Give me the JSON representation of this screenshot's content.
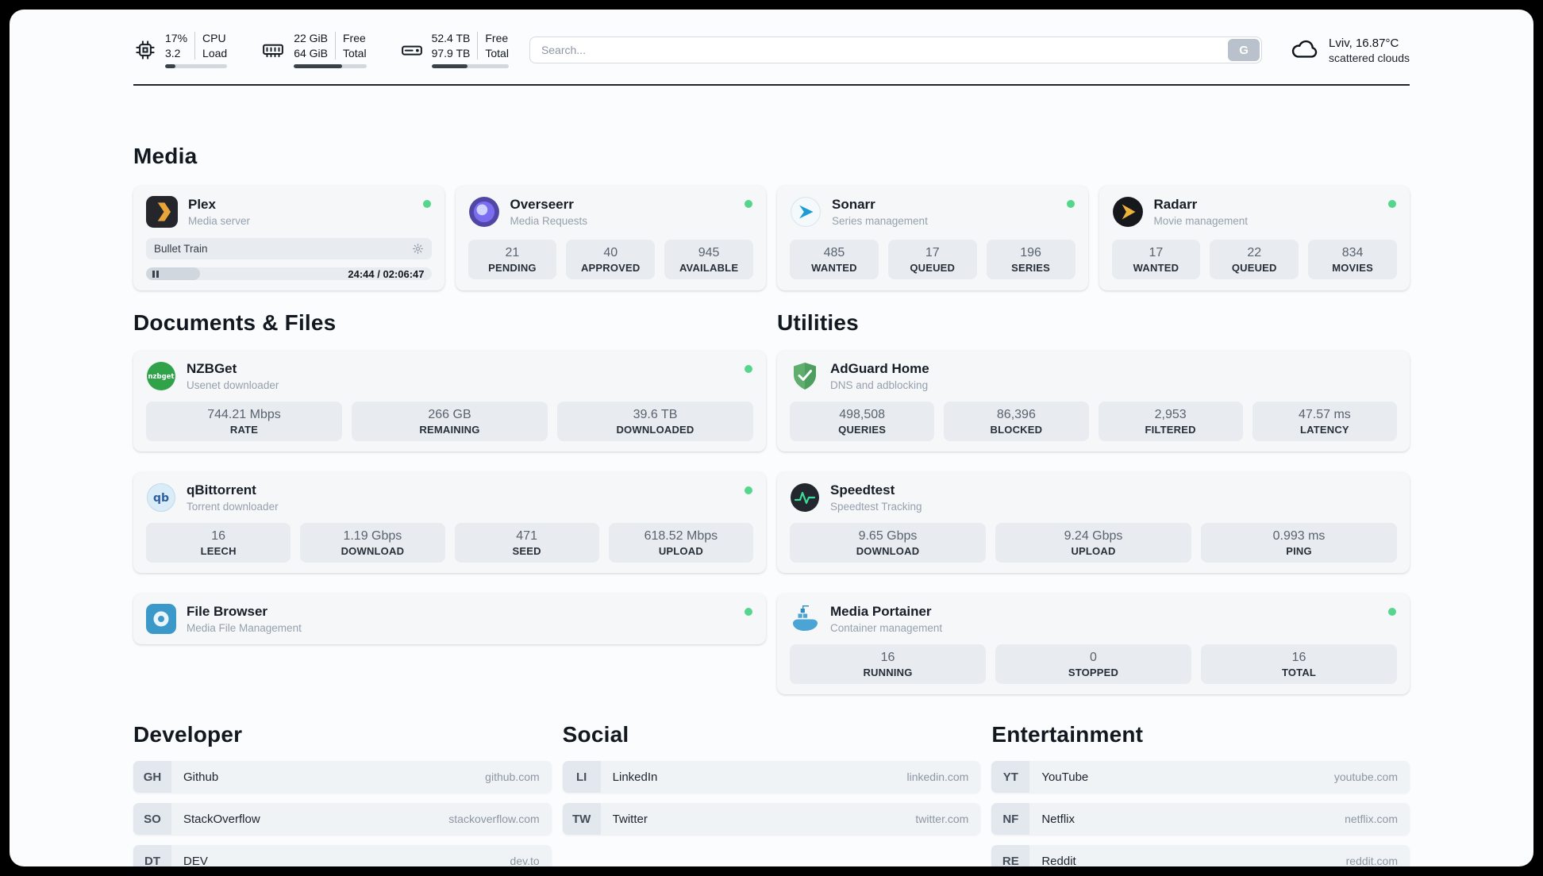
{
  "colors": {
    "status_online": "#56d68c"
  },
  "header": {
    "cpu": {
      "value1": "17%",
      "value2": "3.2",
      "label1": "CPU",
      "label2": "Load",
      "progress": 17
    },
    "ram": {
      "value1": "22 GiB",
      "value2": "64 GiB",
      "label1": "Free",
      "label2": "Total",
      "progress": 66
    },
    "disk": {
      "value1": "52.4 TB",
      "value2": "97.9 TB",
      "label1": "Free",
      "label2": "Total",
      "progress": 47
    },
    "search": {
      "placeholder": "Search...",
      "button_label": "G"
    },
    "weather": {
      "location": "Lviv, 16.87°C",
      "condition": "scattered clouds"
    }
  },
  "media": {
    "title": "Media",
    "plex": {
      "name": "Plex",
      "subtitle": "Media server",
      "now_playing": "Bullet Train",
      "time": "24:44 / 02:06:47",
      "progress": 19
    },
    "cards": [
      {
        "name": "Overseerr",
        "subtitle": "Media Requests",
        "stats": [
          {
            "value": "21",
            "label": "PENDING"
          },
          {
            "value": "40",
            "label": "APPROVED"
          },
          {
            "value": "945",
            "label": "AVAILABLE"
          }
        ]
      },
      {
        "name": "Sonarr",
        "subtitle": "Series management",
        "stats": [
          {
            "value": "485",
            "label": "WANTED"
          },
          {
            "value": "17",
            "label": "QUEUED"
          },
          {
            "value": "196",
            "label": "SERIES"
          }
        ]
      },
      {
        "name": "Radarr",
        "subtitle": "Movie management",
        "stats": [
          {
            "value": "17",
            "label": "WANTED"
          },
          {
            "value": "22",
            "label": "QUEUED"
          },
          {
            "value": "834",
            "label": "MOVIES"
          }
        ]
      }
    ]
  },
  "documents": {
    "title": "Documents & Files",
    "cards": [
      {
        "name": "NZBGet",
        "subtitle": "Usenet downloader",
        "stats": [
          {
            "value": "744.21 Mbps",
            "label": "RATE"
          },
          {
            "value": "266 GB",
            "label": "REMAINING"
          },
          {
            "value": "39.6 TB",
            "label": "DOWNLOADED"
          }
        ]
      },
      {
        "name": "qBittorrent",
        "subtitle": "Torrent downloader",
        "stats": [
          {
            "value": "16",
            "label": "LEECH"
          },
          {
            "value": "1.19 Gbps",
            "label": "DOWNLOAD"
          },
          {
            "value": "471",
            "label": "SEED"
          },
          {
            "value": "618.52 Mbps",
            "label": "UPLOAD"
          }
        ]
      },
      {
        "name": "File Browser",
        "subtitle": "Media File Management",
        "stats": []
      }
    ]
  },
  "utilities": {
    "title": "Utilities",
    "cards": [
      {
        "name": "AdGuard Home",
        "subtitle": "DNS and adblocking",
        "stats": [
          {
            "value": "498,508",
            "label": "QUERIES"
          },
          {
            "value": "86,396",
            "label": "BLOCKED"
          },
          {
            "value": "2,953",
            "label": "FILTERED"
          },
          {
            "value": "47.57 ms",
            "label": "LATENCY"
          }
        ]
      },
      {
        "name": "Speedtest",
        "subtitle": "Speedtest Tracking",
        "stats": [
          {
            "value": "9.65 Gbps",
            "label": "DOWNLOAD"
          },
          {
            "value": "9.24 Gbps",
            "label": "UPLOAD"
          },
          {
            "value": "0.993 ms",
            "label": "PING"
          }
        ]
      },
      {
        "name": "Media Portainer",
        "subtitle": "Container management",
        "stats": [
          {
            "value": "16",
            "label": "RUNNING"
          },
          {
            "value": "0",
            "label": "STOPPED"
          },
          {
            "value": "16",
            "label": "TOTAL"
          }
        ]
      }
    ]
  },
  "bookmarks": {
    "developer": {
      "title": "Developer",
      "items": [
        {
          "abbr": "GH",
          "name": "Github",
          "domain": "github.com"
        },
        {
          "abbr": "SO",
          "name": "StackOverflow",
          "domain": "stackoverflow.com"
        },
        {
          "abbr": "DT",
          "name": "DEV",
          "domain": "dev.to"
        }
      ]
    },
    "social": {
      "title": "Social",
      "items": [
        {
          "abbr": "LI",
          "name": "LinkedIn",
          "domain": "linkedin.com"
        },
        {
          "abbr": "TW",
          "name": "Twitter",
          "domain": "twitter.com"
        }
      ]
    },
    "entertainment": {
      "title": "Entertainment",
      "items": [
        {
          "abbr": "YT",
          "name": "YouTube",
          "domain": "youtube.com"
        },
        {
          "abbr": "NF",
          "name": "Netflix",
          "domain": "netflix.com"
        },
        {
          "abbr": "RE",
          "name": "Reddit",
          "domain": "reddit.com"
        }
      ]
    }
  }
}
